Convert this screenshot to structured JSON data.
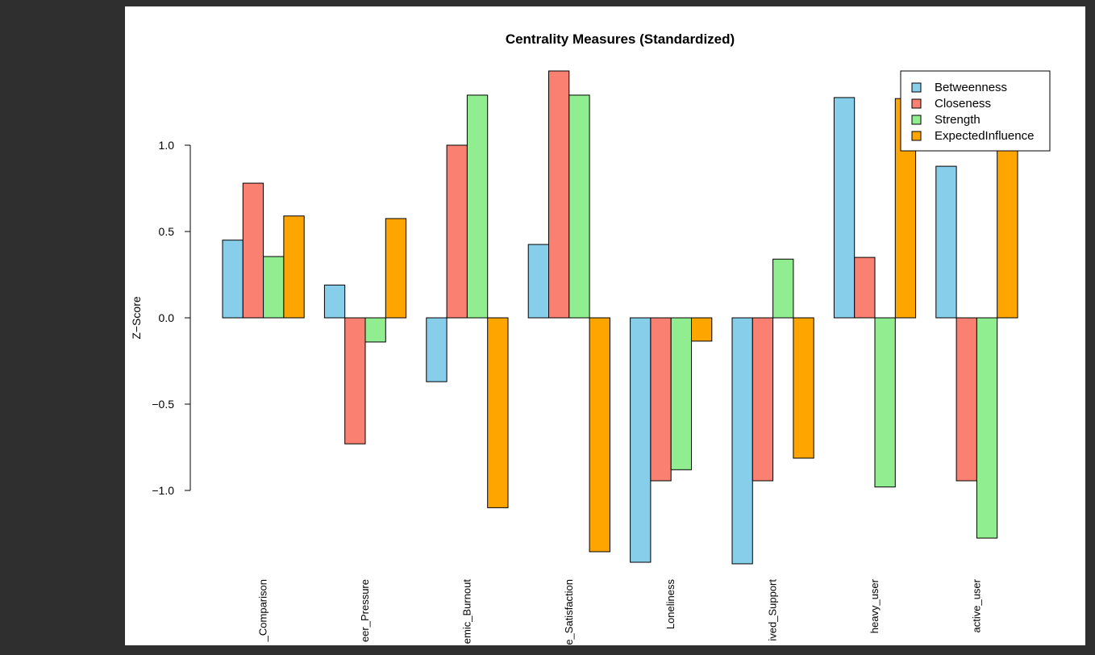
{
  "chart_data": {
    "type": "bar",
    "title": "Centrality Measures (Standardized)",
    "y_label": "Z−Score",
    "categories": [
      "_Comparison",
      "eer_Pressure",
      "emic_Burnout",
      "e_Satisfaction",
      "Loneliness",
      "ived_Support",
      "heavy_user",
      "active_user"
    ],
    "series": [
      {
        "name": "Betweenness",
        "color": "#87ceeb",
        "values": [
          0.45,
          0.19,
          -0.37,
          0.425,
          -1.416,
          -1.425,
          1.276,
          0.878
        ]
      },
      {
        "name": "Closeness",
        "color": "#fa8072",
        "values": [
          0.78,
          -0.73,
          1.0,
          1.43,
          -0.944,
          -0.944,
          0.35,
          -0.944
        ]
      },
      {
        "name": "Strength",
        "color": "#90ee90",
        "values": [
          0.355,
          -0.14,
          1.29,
          1.29,
          -0.88,
          0.34,
          -0.98,
          -1.276
        ]
      },
      {
        "name": "ExpectedInfluence",
        "color": "#ffa500",
        "values": [
          0.59,
          0.575,
          -1.1,
          -1.355,
          -0.135,
          -0.813,
          1.27,
          0.977
        ]
      }
    ],
    "ylim": [
      -1.5,
      1.5
    ],
    "yticks": [
      {
        "value": -1,
        "label": "−1.0"
      },
      {
        "value": -0.5,
        "label": "−0.5"
      },
      {
        "value": 0,
        "label": "0.0"
      },
      0.5,
      {
        "value": 1,
        "label": "1.0"
      }
    ],
    "legend": "top-right"
  }
}
